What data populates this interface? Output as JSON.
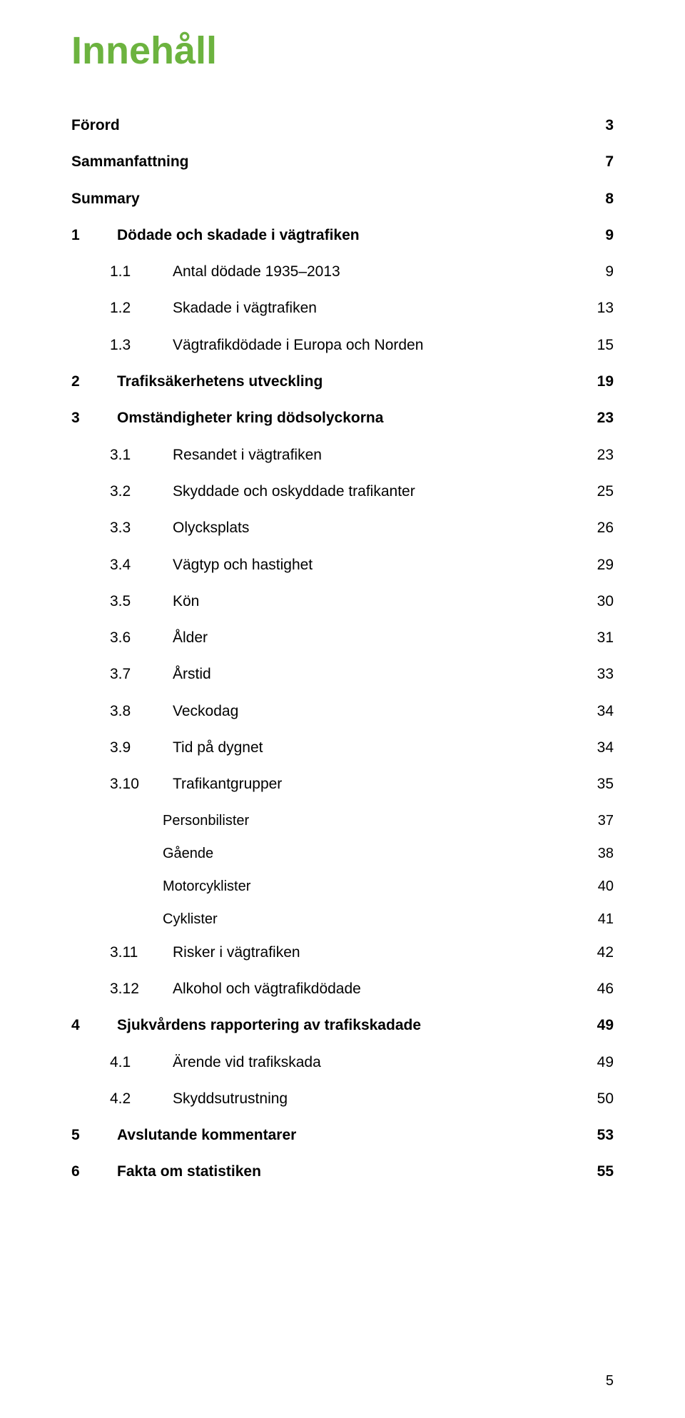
{
  "title": {
    "text": "Innehåll",
    "color": "#6CB33F"
  },
  "footer_page_number": "5",
  "toc": [
    {
      "level": 0,
      "num": "",
      "label": "Förord",
      "page": "3",
      "bold": true
    },
    {
      "level": 0,
      "num": "",
      "label": "Sammanfattning",
      "page": "7",
      "bold": true
    },
    {
      "level": 0,
      "num": "",
      "label": "Summary",
      "page": "8",
      "bold": true
    },
    {
      "level": 0,
      "num": "1",
      "label": "Dödade och skadade i vägtrafiken",
      "page": "9",
      "bold": true
    },
    {
      "level": 1,
      "num": "1.1",
      "label": "Antal dödade 1935–2013",
      "page": "9",
      "bold": false
    },
    {
      "level": 1,
      "num": "1.2",
      "label": "Skadade i vägtrafiken",
      "page": "13",
      "bold": false
    },
    {
      "level": 1,
      "num": "1.3",
      "label": "Vägtrafikdödade i Europa och Norden",
      "page": "15",
      "bold": false
    },
    {
      "level": 0,
      "num": "2",
      "label": "Trafiksäkerhetens utveckling",
      "page": "19",
      "bold": true
    },
    {
      "level": 0,
      "num": "3",
      "label": "Omständigheter kring dödsolyckorna",
      "page": "23",
      "bold": true
    },
    {
      "level": 1,
      "num": "3.1",
      "label": "Resandet i vägtrafiken",
      "page": "23",
      "bold": false
    },
    {
      "level": 1,
      "num": "3.2",
      "label": "Skyddade och oskyddade trafikanter",
      "page": "25",
      "bold": false
    },
    {
      "level": 1,
      "num": "3.3",
      "label": "Olycksplats",
      "page": "26",
      "bold": false
    },
    {
      "level": 1,
      "num": "3.4",
      "label": "Vägtyp och hastighet",
      "page": "29",
      "bold": false
    },
    {
      "level": 1,
      "num": "3.5",
      "label": "Kön",
      "page": "30",
      "bold": false
    },
    {
      "level": 1,
      "num": "3.6",
      "label": "Ålder",
      "page": "31",
      "bold": false
    },
    {
      "level": 1,
      "num": "3.7",
      "label": "Årstid",
      "page": "33",
      "bold": false
    },
    {
      "level": 1,
      "num": "3.8",
      "label": "Veckodag",
      "page": "34",
      "bold": false
    },
    {
      "level": 1,
      "num": "3.9",
      "label": "Tid på dygnet",
      "page": "34",
      "bold": false
    },
    {
      "level": 1,
      "num": "3.10",
      "label": "Trafikantgrupper",
      "page": "35",
      "bold": false
    },
    {
      "level": 2,
      "num": "",
      "label": "Personbilister",
      "page": "37",
      "bold": false
    },
    {
      "level": 2,
      "num": "",
      "label": "Gående",
      "page": "38",
      "bold": false
    },
    {
      "level": 2,
      "num": "",
      "label": "Motorcyklister",
      "page": "40",
      "bold": false
    },
    {
      "level": 2,
      "num": "",
      "label": "Cyklister",
      "page": "41",
      "bold": false
    },
    {
      "level": 1,
      "num": "3.11",
      "label": "Risker i vägtrafiken",
      "page": "42",
      "bold": false
    },
    {
      "level": 1,
      "num": "3.12",
      "label": "Alkohol och vägtrafikdödade",
      "page": "46",
      "bold": false
    },
    {
      "level": 0,
      "num": "4",
      "label": "Sjukvårdens rapportering av trafikskadade",
      "page": "49",
      "bold": true
    },
    {
      "level": 1,
      "num": "4.1",
      "label": "Ärende vid trafikskada",
      "page": "49",
      "bold": false
    },
    {
      "level": 1,
      "num": "4.2",
      "label": "Skyddsutrustning",
      "page": "50",
      "bold": false
    },
    {
      "level": 0,
      "num": "5",
      "label": "Avslutande kommentarer",
      "page": "53",
      "bold": true
    },
    {
      "level": 0,
      "num": "6",
      "label": "Fakta om statistiken",
      "page": "55",
      "bold": true
    }
  ]
}
